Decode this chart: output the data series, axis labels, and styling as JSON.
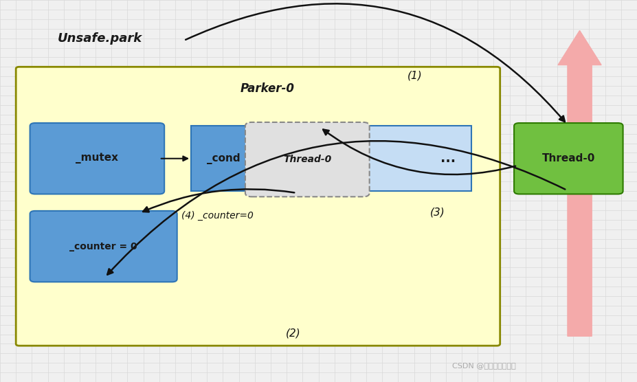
{
  "bg_color": "#f0f0f0",
  "grid_color": "#d8d8d8",
  "title_text": "Unsafe.park",
  "parker_label": "Parker-0",
  "mutex_label": "_mutex",
  "cond_label": "_cond",
  "thread0_inner_label": "Thread-0",
  "ellipsis_label": "...",
  "counter_label": "_counter = 0",
  "thread0_outer_label": "Thread-0",
  "arrow_label_1": "(1)",
  "arrow_label_2": "(2)",
  "arrow_label_3": "(3)",
  "arrow_label_4": "(4) _counter=0",
  "watermark": "CSDN @渝北最后的单纯",
  "colors": {
    "blue_box": "#5b9bd5",
    "blue_box_light": "#c5ddf4",
    "green_box": "#70c040",
    "yellow_fill": "#ffffcc",
    "yellow_edge": "#888800",
    "thread0_inner_fill": "#e0e0e0",
    "thread0_inner_edge": "#888888",
    "big_arrow": "#f4aaaa",
    "text_dark": "#1a1a1a",
    "watermark_color": "#aaaaaa",
    "blue_edge": "#2e75b6",
    "arrow_color": "#111111"
  }
}
